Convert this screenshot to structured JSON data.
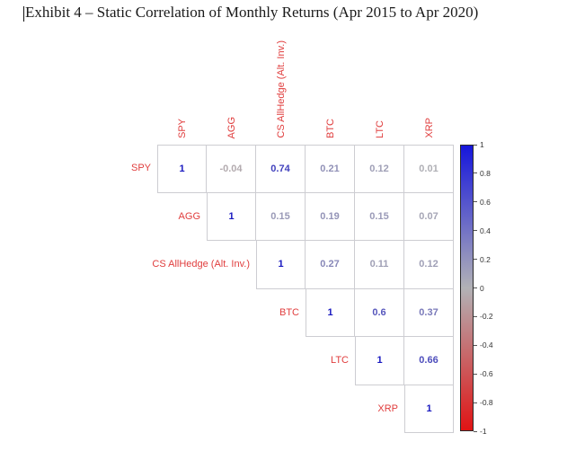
{
  "header": {
    "title": "Exhibit 4 – Static Correlation of Monthly Returns (Apr 2015 to Apr 2020)"
  },
  "chart_data": {
    "type": "heatmap",
    "subtype": "correlation-matrix-upper-triangle-numeric",
    "title": "Exhibit 4 – Static Correlation of Monthly Returns (Apr 2015 to Apr 2020)",
    "labels": [
      "SPY",
      "AGG",
      "CS AllHedge (Alt. Inv.)",
      "BTC",
      "LTC",
      "XRP"
    ],
    "upper_triangle": [
      [
        1,
        -0.04,
        0.74,
        0.21,
        0.12,
        0.01
      ],
      [
        1,
        0.15,
        0.19,
        0.15,
        0.07
      ],
      [
        1,
        0.27,
        0.11,
        0.12
      ],
      [
        1,
        0.6,
        0.37
      ],
      [
        1,
        0.66
      ],
      [
        1
      ]
    ],
    "value_range": [
      -1,
      1
    ],
    "grid": true,
    "legend_position": "right",
    "colorbar": {
      "ticks": [
        1,
        0.8,
        0.6,
        0.4,
        0.2,
        0,
        -0.2,
        -0.4,
        -0.6,
        -0.8,
        -1
      ],
      "top_color": "#1616dc",
      "mid_color": "#b2b2b6",
      "bottom_color": "#e01414"
    },
    "colors": {
      "axis_label_red": "#e03d3d",
      "value_positive_full": "#1919c0",
      "value_neutral": "#b1b1b5",
      "value_negative_full": "#e22222",
      "grid_line": "#cdcdd2"
    }
  }
}
